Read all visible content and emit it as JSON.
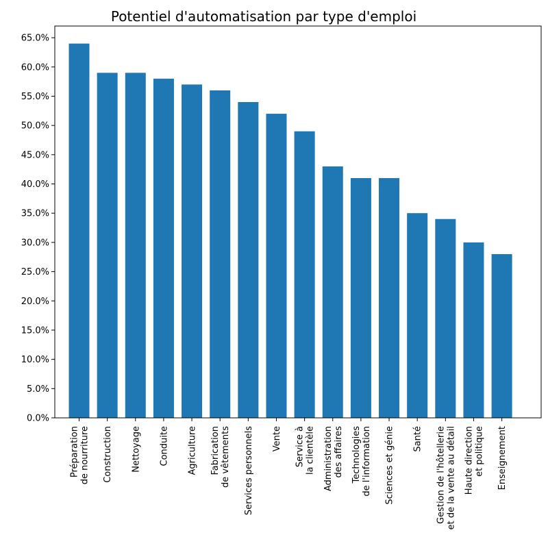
{
  "chart_data": {
    "type": "bar",
    "title": "Potentiel d'automatisation par type d'emploi",
    "xlabel": "",
    "ylabel": "",
    "ylim": [
      0,
      0.67
    ],
    "y_ticks": [
      0,
      0.05,
      0.1,
      0.15,
      0.2,
      0.25,
      0.3,
      0.35,
      0.4,
      0.45,
      0.5,
      0.55,
      0.6,
      0.65
    ],
    "y_tick_labels": [
      "0.0%",
      "5.0%",
      "10.0%",
      "15.0%",
      "20.0%",
      "25.0%",
      "30.0%",
      "35.0%",
      "40.0%",
      "45.0%",
      "50.0%",
      "55.0%",
      "60.0%",
      "65.0%"
    ],
    "grid": false,
    "bar_color": "#1f77b4",
    "categories": [
      "Préparation\nde nourriture",
      "Construction",
      "Nettoyage",
      "Conduite",
      "Agriculture",
      "Fabrication\nde vêtements",
      "Services personnels",
      "Vente",
      "Service à\nla clientèle",
      "Administration\ndes affaires",
      "Technologies\nde l'information",
      "Sciences et génie",
      "Santé",
      "Gestion de l'hôtellerie\net de la vente au détail",
      "Haute direction\net politique",
      "Enseignement"
    ],
    "values": [
      0.64,
      0.59,
      0.59,
      0.58,
      0.57,
      0.56,
      0.54,
      0.52,
      0.49,
      0.43,
      0.41,
      0.41,
      0.35,
      0.34,
      0.3,
      0.28
    ]
  }
}
